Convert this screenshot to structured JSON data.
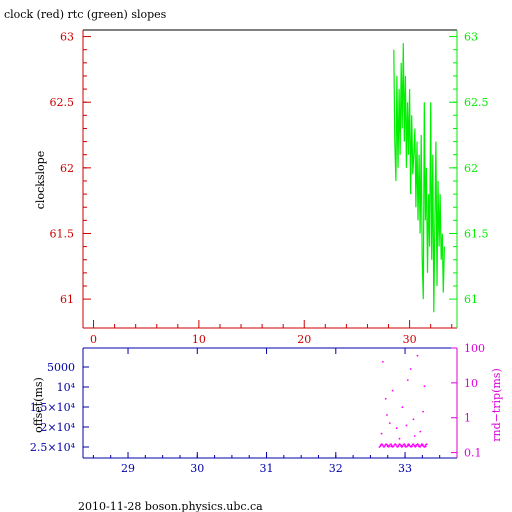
{
  "title": "clock (red) rtc (green) slopes",
  "footer": "2010-11-28  boson.physics.ubc.ca",
  "colors": {
    "axis": "#000000",
    "left_axis": "#cc0000",
    "right_axis": "#00ee00",
    "series_rtc": "#00ee00",
    "bottom_left_axis": "#0000aa",
    "bottom_right_axis": "#dd00dd",
    "offset_points": "#ff00ff"
  },
  "chart_data": [
    {
      "type": "line",
      "ylabel": "clockslope",
      "xticks": [
        0,
        10,
        20,
        30
      ],
      "xlim": [
        -1,
        34.5
      ],
      "ylim": [
        60.78,
        63.05
      ],
      "yticks": [
        "61",
        "61.5",
        "62",
        "62.5",
        "63"
      ],
      "right_yticks": [
        "61",
        "61.5",
        "62",
        "62.5",
        "63"
      ],
      "series": [
        {
          "color": "#00ee00",
          "x": [
            28.5,
            28.6,
            28.7,
            28.8,
            28.9,
            29.0,
            29.1,
            29.2,
            29.3,
            29.4,
            29.5,
            29.6,
            29.7,
            29.8,
            29.9,
            30.0,
            30.1,
            30.2,
            30.3,
            30.4,
            30.5,
            30.6,
            30.7,
            30.8,
            30.9,
            31.0,
            31.1,
            31.2,
            31.3,
            31.4,
            31.5,
            31.6,
            31.7,
            31.8,
            31.9,
            32.0,
            32.1,
            32.2,
            32.3,
            32.4,
            32.5,
            32.6,
            32.7,
            32.8,
            32.9,
            33.0,
            33.1,
            33.2,
            33.3
          ],
          "values": [
            62.9,
            62.2,
            61.9,
            62.7,
            62.0,
            62.6,
            62.1,
            62.8,
            62.3,
            62.95,
            62.2,
            62.7,
            62.0,
            62.5,
            62.1,
            62.6,
            61.8,
            62.4,
            61.95,
            62.1,
            62.3,
            61.7,
            62.2,
            61.6,
            62.1,
            61.5,
            62.25,
            61.3,
            61.0,
            62.5,
            61.6,
            62.0,
            61.2,
            61.8,
            61.4,
            62.5,
            61.3,
            62.1,
            60.9,
            61.6,
            62.2,
            61.1,
            61.9,
            61.4,
            61.8,
            61.3,
            61.5,
            61.05,
            61.4
          ]
        }
      ]
    },
    {
      "type": "scatter",
      "xticks": [
        29,
        30,
        31,
        32,
        33
      ],
      "xlim": [
        28.35,
        33.75
      ],
      "ylabel": "offset(ms)",
      "yticks": [
        "5000",
        "10⁴",
        "1.5×10⁴",
        "2×10⁴",
        "2.5×10⁴"
      ],
      "right_ylabel": "rnd−trip(ms)",
      "right_yticks": [
        "100",
        "10",
        "1",
        "0.1"
      ],
      "right_ylim": [
        0.07,
        100
      ],
      "right_scale": "log",
      "series": [
        {
          "color": "#ff00ff",
          "x": [
            32.65,
            32.7,
            32.75,
            32.8,
            32.85,
            32.9,
            32.95,
            33.0,
            33.05,
            33.1,
            33.15,
            33.2,
            33.25,
            33.3,
            32.68,
            32.72,
            32.78,
            32.88,
            32.96,
            33.04,
            33.12,
            33.18,
            33.22,
            33.28,
            32.66,
            32.74,
            32.82,
            32.92,
            33.02,
            33.08,
            33.14,
            33.26
          ],
          "values": [
            0.16,
            0.15,
            0.16,
            0.15,
            0.17,
            0.15,
            0.16,
            0.15,
            0.16,
            0.15,
            0.16,
            0.15,
            0.16,
            0.15,
            40,
            3.5,
            0.7,
            0.5,
            2.0,
            12,
            0.9,
            60,
            0.4,
            8,
            0.35,
            1.2,
            6,
            0.25,
            0.6,
            25,
            0.3,
            1.5
          ]
        }
      ]
    }
  ]
}
